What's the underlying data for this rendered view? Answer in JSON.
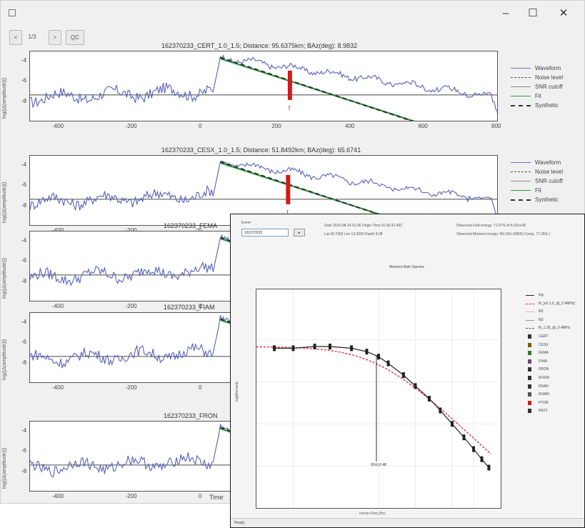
{
  "window": {
    "minimize_label": "–",
    "maximize_label": "☐",
    "close_label": "✕"
  },
  "toolbar": {
    "prev_label": "<",
    "page_label": "1/3",
    "next_label": ">",
    "qc_label": "QC"
  },
  "colors": {
    "waveform": "#5560b8",
    "fit": "#2f9a3e",
    "synthetic": "#2d2d2d",
    "marker": "#d11a1a",
    "background": "#f0f0f0"
  },
  "axes": {
    "y_label": "log(|Δ(amplitude)|)",
    "y_ticks": [
      "-4",
      "-6",
      "-8"
    ],
    "x_ticks": [
      "-400",
      "-200",
      "0",
      "200",
      "400",
      "600",
      "800"
    ],
    "x_label": "Time"
  },
  "legend": {
    "items": [
      "Waveform",
      "Noise level",
      "SNR cutoff",
      "Fit",
      "Synthetic"
    ]
  },
  "panels": [
    {
      "title": "162370233_CERT_1.0_1.5; Distance: 95.6375km; BAz(deg): 8.9832",
      "marker_label": "f",
      "marker_time": 230
    },
    {
      "title": "162370233_CESX_1.0_1.5; Distance: 51.8492km; BAz(deg): 65.6741",
      "marker_label": "f",
      "marker_time": 225
    },
    {
      "title": "162370233_FEMA",
      "marker_label": "",
      "marker_time": null
    },
    {
      "title": "162370233_FIAM",
      "marker_label": "",
      "marker_time": null
    },
    {
      "title": "162370233_FRON",
      "marker_label": "",
      "marker_time": null
    }
  ],
  "popup": {
    "event_label": "Event",
    "event_value": "162370233",
    "go_label": "▸",
    "info_line1": "Date 2016-08-24 01:36 Origin Time 01:36:32.492",
    "info_line2": "Lat 42.7063 Lon 13.2500 Depth 8.08",
    "info_right1": "Observed Fwd energy: 71.07% of 8.32e+08",
    "info_right2": "Observed Moment energy: 89.19% (MDR) Comp. 77.35% )",
    "chart_title": "Moment Rate Spectra",
    "x_label": "corner Freq (Hz)",
    "y_label": "log(Moment)",
    "annotation": "f(Hz):0.48",
    "status": "Ready"
  },
  "chart_data": {
    "type": "scatter",
    "title": "Moment Rate Spectra",
    "xlabel": "corner Freq (Hz)",
    "ylabel": "log(Moment)",
    "x_scale": "log",
    "corner_frequency": 0.48,
    "x": [
      0.07,
      0.1,
      0.15,
      0.2,
      0.3,
      0.4,
      0.5,
      0.6,
      0.8,
      1.0,
      1.3,
      1.6,
      2.0,
      2.5,
      3.0,
      3.5,
      4.0
    ],
    "series": [
      {
        "name": "log",
        "values": [
          16.9,
          16.9,
          16.92,
          16.92,
          16.9,
          16.86,
          16.8,
          16.72,
          16.58,
          16.45,
          16.3,
          16.16,
          16.0,
          15.84,
          15.7,
          15.58,
          15.48
        ]
      }
    ],
    "legend_entries": [
      "log",
      "fit_[x0.1.0_@_0.4MHz]",
      "fit2",
      "fit3",
      "fit_1.28_@_0.4MHz",
      "CERT",
      "CESX",
      "FEMA",
      "FIAM",
      "FRON",
      "ROGN",
      "RSAN",
      "RUMN",
      "PTOB",
      "RAT2"
    ],
    "legend_placement": "right",
    "grid": true
  }
}
